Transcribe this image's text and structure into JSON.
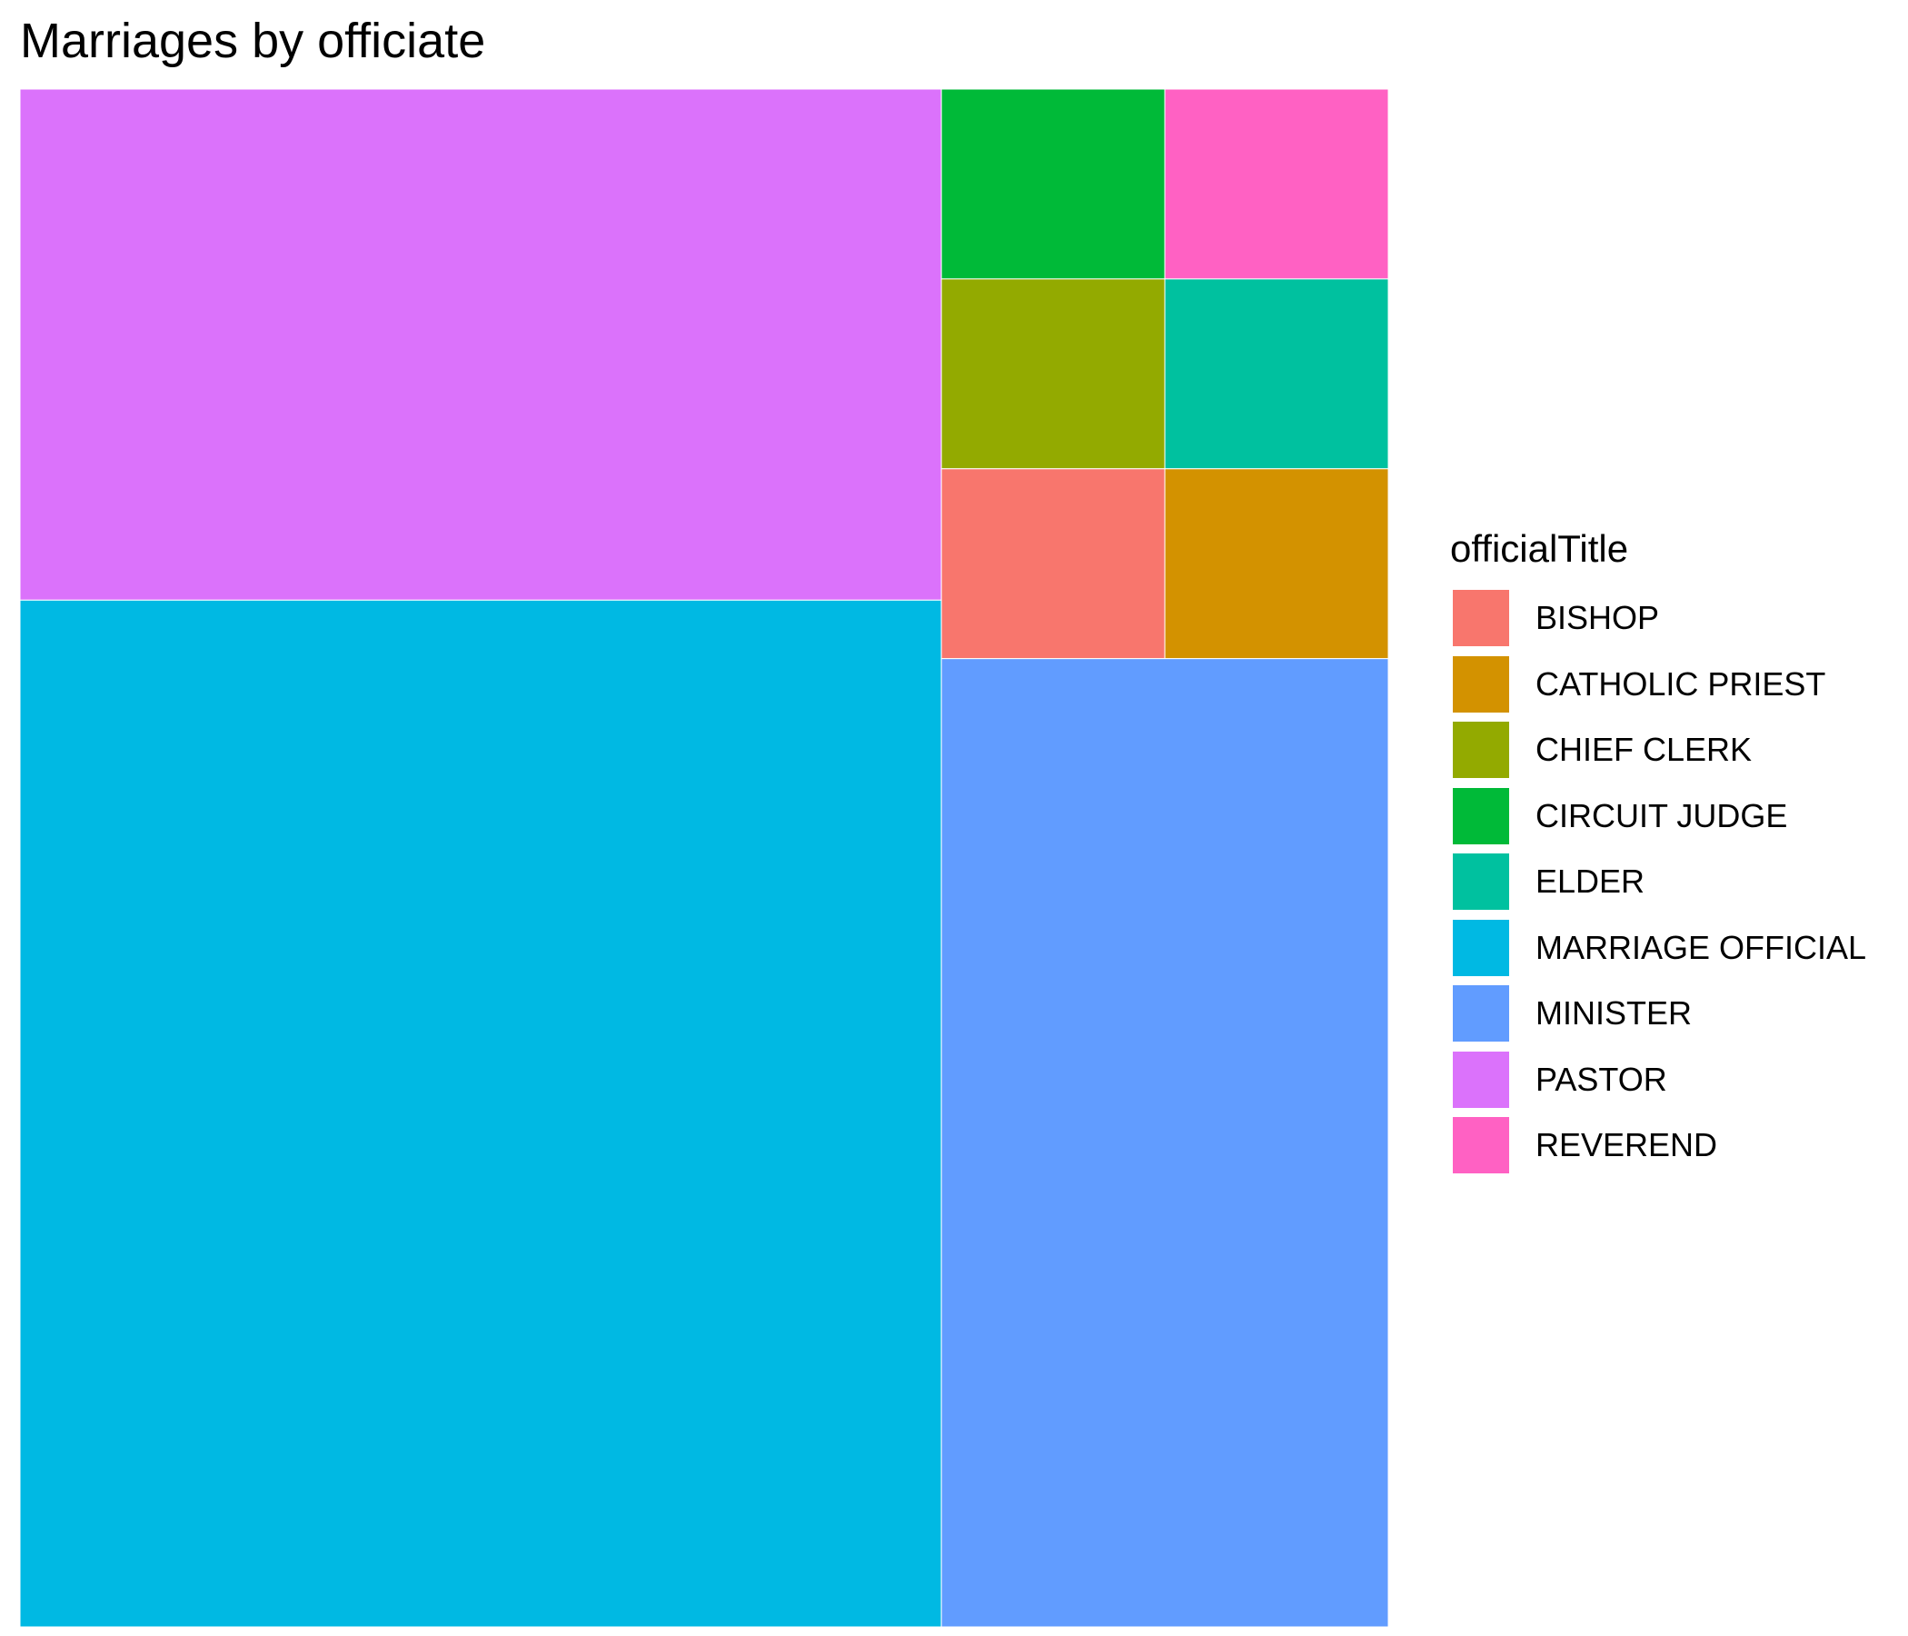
{
  "chart_data": {
    "type": "treemap",
    "title": "Marriages by officiate",
    "legend": {
      "title": "officialTitle",
      "placement": "right"
    },
    "items": [
      {
        "name": "BISHOP",
        "value": 1,
        "color": "#F8766D"
      },
      {
        "name": "CATHOLIC PRIEST",
        "value": 1,
        "color": "#D39200"
      },
      {
        "name": "CHIEF CLERK",
        "value": 1,
        "color": "#93AA00"
      },
      {
        "name": "CIRCUIT JUDGE",
        "value": 1,
        "color": "#00BA38"
      },
      {
        "name": "ELDER",
        "value": 1,
        "color": "#00C19F"
      },
      {
        "name": "MARRIAGE OFFICIAL",
        "value": 22.3,
        "color": "#00B9E3"
      },
      {
        "name": "MINISTER",
        "value": 10.2,
        "color": "#619CFF"
      },
      {
        "name": "PASTOR",
        "value": 11.1,
        "color": "#DB72FB"
      },
      {
        "name": "REVEREND",
        "value": 1,
        "color": "#FF61C3"
      }
    ]
  }
}
